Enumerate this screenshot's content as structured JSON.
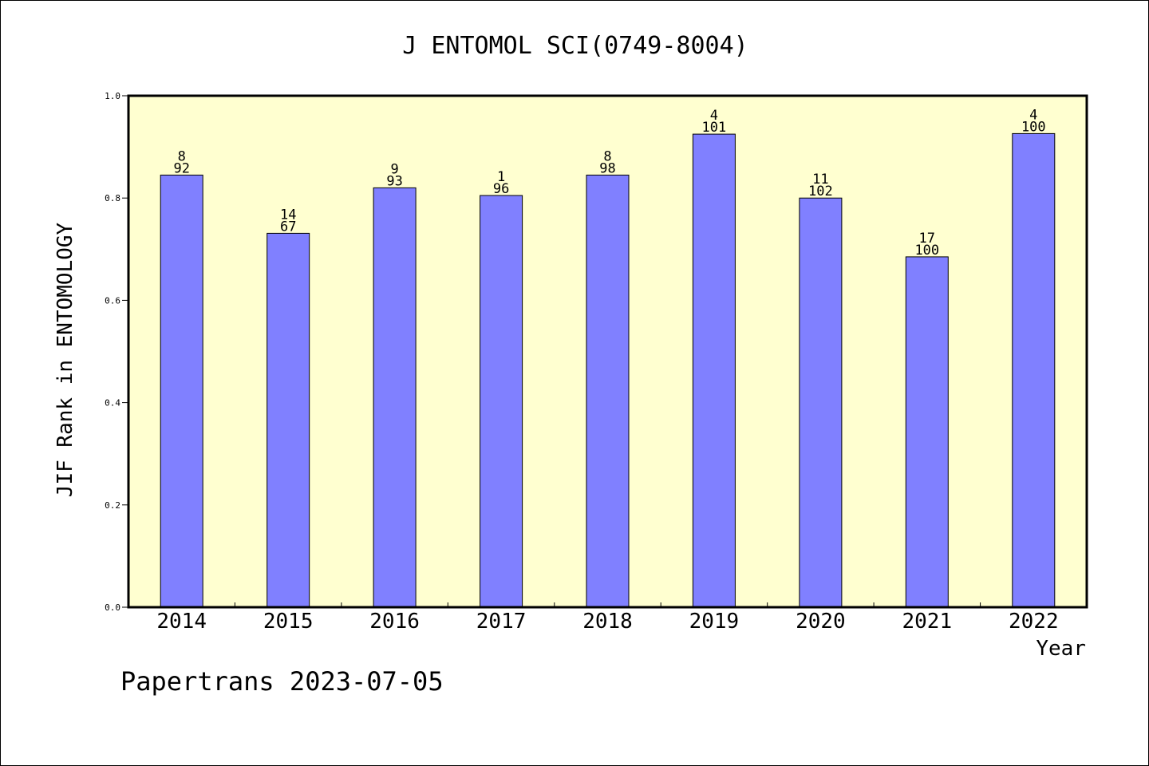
{
  "chart_data": {
    "type": "bar",
    "title": "J ENTOMOL SCI(0749-8004)",
    "xlabel": "Year",
    "ylabel": "JIF Rank in ENTOMOLOGY",
    "categories": [
      "2014",
      "2015",
      "2016",
      "2017",
      "2018",
      "2019",
      "2020",
      "2021",
      "2022"
    ],
    "values": [
      0.845,
      0.731,
      0.82,
      0.805,
      0.845,
      0.925,
      0.8,
      0.685,
      0.926
    ],
    "rank": [
      "8",
      "14",
      "9",
      "1",
      "8",
      "4",
      "11",
      "17",
      "4"
    ],
    "total": [
      "92",
      "67",
      "93",
      "96",
      "98",
      "101",
      "102",
      "100",
      "100"
    ],
    "ylim": [
      0,
      1.0
    ],
    "yticks": [
      "0.0",
      "0.2",
      "0.4",
      "0.6",
      "0.8",
      "1.0"
    ],
    "grid": false,
    "legend": "none",
    "colors": {
      "bar_fill": "#8080ff",
      "plot_background": "#ffffd0"
    }
  },
  "footer": {
    "text": "Papertrans 2023-07-05"
  }
}
